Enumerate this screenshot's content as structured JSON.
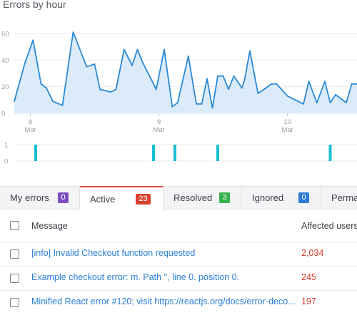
{
  "chart_title": "Errors by hour",
  "chart_data": {
    "type": "area",
    "title": "Errors by hour",
    "ylim": [
      0,
      60
    ],
    "y_ticks": [
      "0",
      "20",
      "40",
      "60"
    ],
    "x_ticks": [
      {
        "day": "8",
        "month": "Mar"
      },
      {
        "day": "9",
        "month": "Mar"
      },
      {
        "day": "10",
        "month": "Mar"
      }
    ],
    "x_range_hours": [
      -3,
      61
    ],
    "x_tick_hours": [
      0,
      24,
      48
    ],
    "series": [
      {
        "x": [
          -3,
          -1,
          0.5,
          2,
          3,
          4.2,
          6,
          8,
          10.5,
          12,
          13,
          15,
          16,
          17.5,
          19,
          20,
          21,
          23.5,
          25,
          26.5,
          27.5,
          29.5,
          31,
          32,
          33,
          34,
          35,
          36,
          37,
          38,
          39.5,
          40,
          41,
          42.5,
          44,
          45,
          46,
          48,
          49.5,
          51,
          52,
          53.5,
          55,
          56,
          57,
          59,
          60,
          61
        ],
        "values": [
          9,
          38,
          55,
          22,
          19,
          9,
          6,
          61,
          35,
          37,
          18,
          16,
          18,
          48,
          36,
          48,
          38,
          18,
          48,
          5,
          8,
          43,
          7,
          7,
          26,
          4,
          28,
          28,
          18,
          28,
          19,
          25,
          47,
          15,
          19,
          22,
          22,
          13,
          10,
          7,
          24,
          8,
          24,
          8,
          14,
          8,
          22,
          22
        ]
      }
    ],
    "bars": {
      "y_ticks": [
        "1",
        "0"
      ],
      "hours": [
        1,
        23,
        27,
        35,
        56
      ],
      "values": [
        1,
        1,
        1,
        1,
        1
      ]
    },
    "colors": {
      "line": "#2a89d6",
      "fill": "#dcebfa",
      "bar": "#17bfd3",
      "grid": "#e8eaed"
    }
  },
  "tabs": [
    {
      "label": "My errors",
      "count": "0",
      "color": "#7b4fbf"
    },
    {
      "label": "Active",
      "count": "23",
      "color": "#d9412f"
    },
    {
      "label": "Resolved",
      "count": "3",
      "color": "#36b24a"
    },
    {
      "label": "Ignored",
      "count": "0",
      "color": "#2e7bd6"
    },
    {
      "label": "Perma"
    }
  ],
  "table": {
    "headers": {
      "message": "Message",
      "users": "Affected users"
    },
    "rows": [
      {
        "message": "[info] Invalid Checkout function requested",
        "users": "2,034"
      },
      {
        "message": "Example checkout error: m. Path '', line 0. position 0.",
        "users": "245"
      },
      {
        "message": "Minified React error #120; visit https://reactjs.org/docs/error-deco...",
        "users": "197"
      }
    ]
  }
}
